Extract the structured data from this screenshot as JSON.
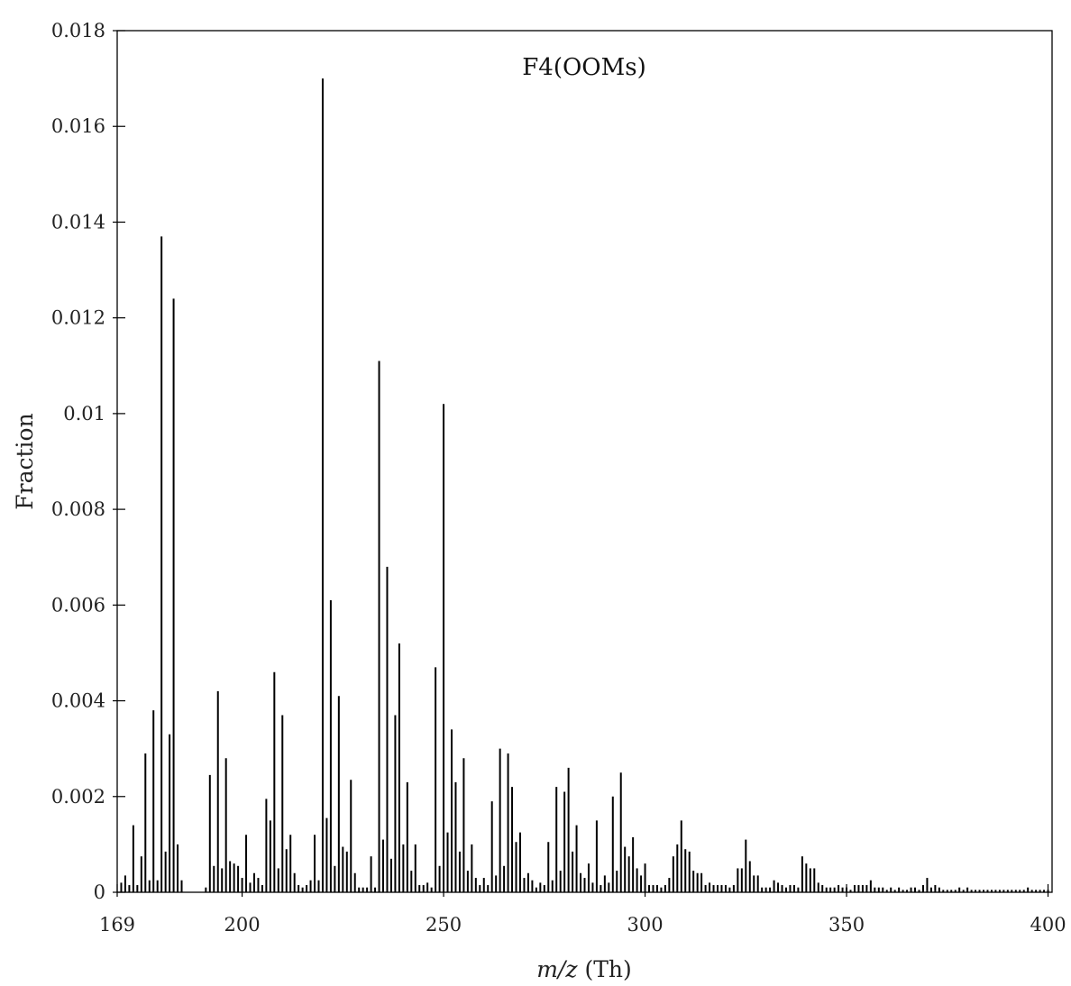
{
  "chart_data": {
    "type": "bar",
    "title": "F4(OOMs)",
    "xlabel": "m/z (Th)",
    "ylabel": "Fraction",
    "xlim": [
      169,
      401
    ],
    "ylim": [
      0,
      0.018
    ],
    "xticks": [
      169,
      200,
      250,
      300,
      350,
      400
    ],
    "xtick_labels": [
      "169",
      "200",
      "250",
      "300",
      "350",
      "400"
    ],
    "yticks": [
      0,
      0.002,
      0.004,
      0.006,
      0.008,
      0.01,
      0.012,
      0.014,
      0.016,
      0.018
    ],
    "ytick_labels": [
      "0",
      "0.002",
      "0.004",
      "0.006",
      "0.008",
      "0.01",
      "0.012",
      "0.014",
      "0.016",
      "0.018"
    ],
    "grid": false,
    "legend": "none",
    "color": "#000000",
    "series": [
      {
        "x": [
          170,
          171,
          172,
          173,
          174,
          175,
          176,
          177,
          178,
          179,
          180,
          181,
          182,
          183,
          184,
          185,
          191,
          192,
          193,
          194,
          195,
          196,
          197,
          198,
          199,
          200,
          201,
          202,
          203,
          204,
          205,
          206,
          207,
          208,
          209,
          210,
          211,
          212,
          213,
          214,
          215,
          216,
          217,
          218,
          219,
          220,
          221,
          222,
          223,
          224,
          225,
          226,
          227,
          228,
          229,
          230,
          231,
          232,
          233,
          234,
          235,
          236,
          237,
          238,
          239,
          240,
          241,
          242,
          243,
          244,
          245,
          246,
          247,
          248,
          249,
          250,
          251,
          252,
          253,
          254,
          255,
          256,
          257,
          258,
          259,
          260,
          261,
          262,
          263,
          264,
          265,
          266,
          267,
          268,
          269,
          270,
          271,
          272,
          273,
          274,
          275,
          276,
          277,
          278,
          279,
          280,
          281,
          282,
          283,
          284,
          285,
          286,
          287,
          288,
          289,
          290,
          291,
          292,
          293,
          294,
          295,
          296,
          297,
          298,
          299,
          300,
          301,
          302,
          303,
          304,
          305,
          306,
          307,
          308,
          309,
          310,
          311,
          312,
          313,
          314,
          315,
          316,
          317,
          318,
          319,
          320,
          321,
          322,
          323,
          324,
          325,
          326,
          327,
          328,
          329,
          330,
          331,
          332,
          333,
          334,
          335,
          336,
          337,
          338,
          339,
          340,
          341,
          342,
          343,
          344,
          345,
          346,
          347,
          348,
          349,
          350,
          351,
          352,
          353,
          354,
          355,
          356,
          357,
          358,
          359,
          360,
          361,
          362,
          363,
          364,
          365,
          366,
          367,
          368,
          369,
          370,
          371,
          372,
          373,
          374,
          375,
          376,
          377,
          378,
          379,
          380,
          381,
          382,
          383,
          384,
          385,
          386,
          387,
          388,
          389,
          390,
          391,
          392,
          393,
          394,
          395,
          396,
          397,
          398,
          399,
          400
        ],
        "values": [
          0.0002,
          0.00035,
          0.00015,
          0.0014,
          0.00015,
          0.00075,
          0.0029,
          0.00025,
          0.0038,
          0.00025,
          0.0137,
          0.00085,
          0.0033,
          0.0124,
          0.001,
          0.00025,
          0.0001,
          0.00245,
          0.00055,
          0.0042,
          0.0005,
          0.0028,
          0.00065,
          0.0006,
          0.00055,
          0.0003,
          0.0012,
          0.0002,
          0.0004,
          0.0003,
          0.00015,
          0.00195,
          0.0015,
          0.0046,
          0.0005,
          0.0037,
          0.0009,
          0.0012,
          0.0004,
          0.00015,
          0.0001,
          0.00015,
          0.00025,
          0.0012,
          0.00025,
          0.017,
          0.00155,
          0.0061,
          0.00055,
          0.0041,
          0.00095,
          0.00085,
          0.00235,
          0.0004,
          0.0001,
          0.0001,
          0.0001,
          0.00075,
          0.0001,
          0.0111,
          0.0011,
          0.0068,
          0.0007,
          0.0037,
          0.0052,
          0.001,
          0.0023,
          0.00045,
          0.001,
          0.00015,
          0.00015,
          0.0002,
          0.0001,
          0.0047,
          0.00055,
          0.0102,
          0.00125,
          0.0034,
          0.0023,
          0.00085,
          0.0028,
          0.00045,
          0.001,
          0.0003,
          0.00015,
          0.0003,
          0.00015,
          0.0019,
          0.00035,
          0.003,
          0.00055,
          0.0029,
          0.0022,
          0.00105,
          0.00125,
          0.0003,
          0.0004,
          0.00025,
          0.0001,
          0.0002,
          0.00015,
          0.00105,
          0.00025,
          0.0022,
          0.00045,
          0.0021,
          0.0026,
          0.00085,
          0.0014,
          0.0004,
          0.0003,
          0.0006,
          0.0002,
          0.0015,
          0.00015,
          0.00035,
          0.0002,
          0.002,
          0.00045,
          0.0025,
          0.00095,
          0.00075,
          0.00115,
          0.0005,
          0.00035,
          0.0006,
          0.00015,
          0.00015,
          0.00015,
          0.0001,
          0.00015,
          0.0003,
          0.00075,
          0.001,
          0.0015,
          0.0009,
          0.00085,
          0.00045,
          0.0004,
          0.0004,
          0.00015,
          0.0002,
          0.00015,
          0.00015,
          0.00015,
          0.00015,
          0.0001,
          0.00015,
          0.0005,
          0.0005,
          0.0011,
          0.00065,
          0.00035,
          0.00035,
          0.0001,
          0.0001,
          0.0001,
          0.00025,
          0.0002,
          0.00015,
          0.0001,
          0.00015,
          0.00015,
          0.0001,
          0.00075,
          0.0006,
          0.0005,
          0.0005,
          0.0002,
          0.00015,
          0.0001,
          0.0001,
          0.0001,
          0.00015,
          0.0001,
          0.0001,
          5e-05,
          0.00015,
          0.00015,
          0.00015,
          0.00015,
          0.00025,
          0.0001,
          0.0001,
          0.0001,
          5e-05,
          0.0001,
          5e-05,
          0.0001,
          5e-05,
          5e-05,
          0.0001,
          0.0001,
          5e-05,
          0.00015,
          0.0003,
          0.0001,
          0.00015,
          0.0001,
          5e-05,
          5e-05,
          5e-05,
          5e-05,
          0.0001,
          5e-05,
          0.0001,
          5e-05,
          5e-05,
          5e-05,
          5e-05,
          5e-05,
          5e-05,
          5e-05,
          5e-05,
          5e-05,
          5e-05,
          5e-05,
          5e-05,
          5e-05,
          5e-05,
          0.0001,
          5e-05,
          5e-05,
          5e-05,
          5e-05,
          5e-05
        ]
      }
    ]
  }
}
